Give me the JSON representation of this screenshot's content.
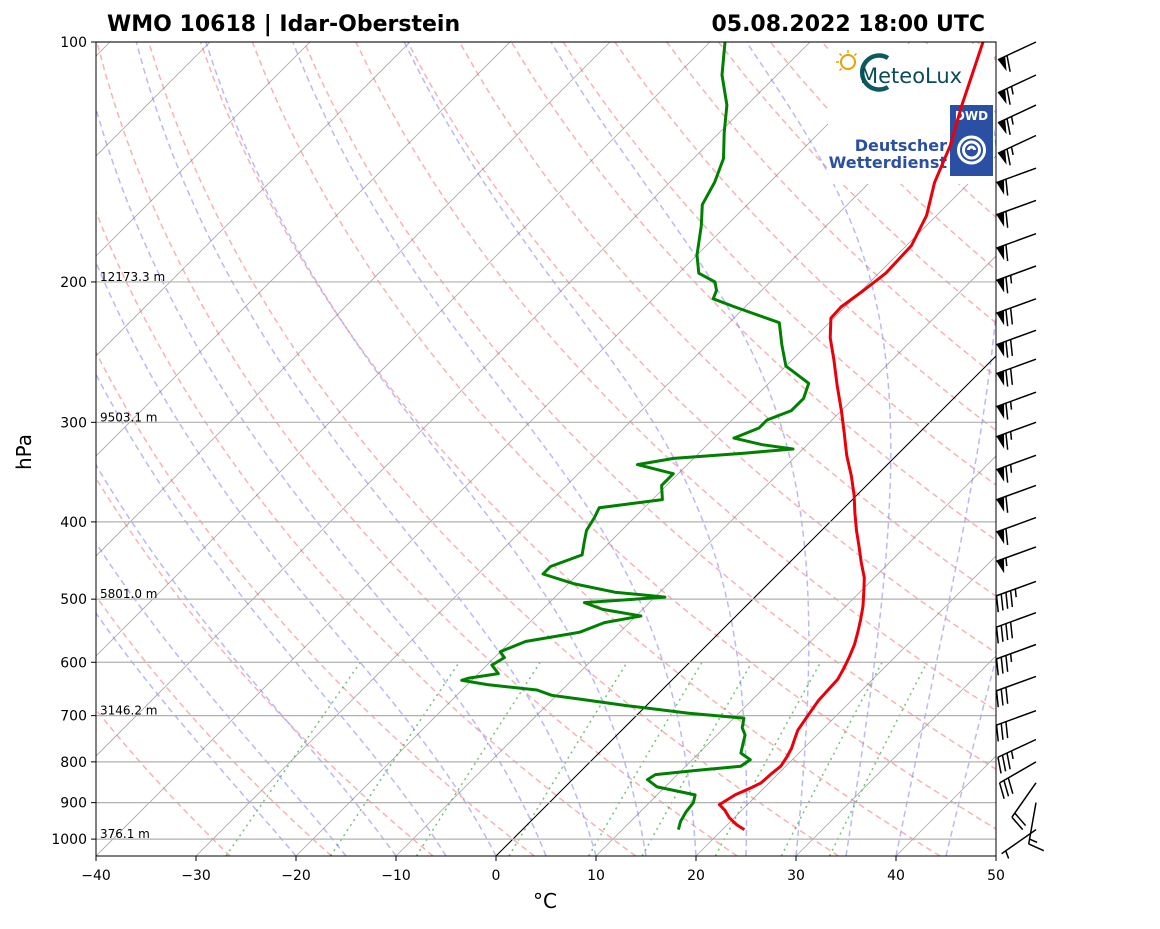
{
  "title_left": "WMO 10618 | Idar-Oberstein",
  "title_right": "05.08.2022 18:00 UTC",
  "logos": {
    "meteolux_text": "MeteoLux",
    "dwd_badge": "DWD",
    "dwd_line1": "Deutscher",
    "dwd_line2": "Wetterdienst"
  },
  "colors": {
    "temperature": "#e8000b",
    "dewpoint": "#008000",
    "isotherm": "#808080",
    "dry_adiabat": "#f08080",
    "moist_adiabat": "#8080f0",
    "mixing_ratio": "#2ca02c"
  },
  "chart_data": {
    "type": "skew-t log-p",
    "xlabel": "°C",
    "ylabel": "hPa",
    "xlim": [
      -40,
      50
    ],
    "ylim": [
      1050,
      100
    ],
    "y_scale": "log",
    "grid": true,
    "x_ticks": [
      -40,
      -30,
      -20,
      -10,
      0,
      10,
      20,
      30,
      40,
      50
    ],
    "x_tick_labels": [
      "−40",
      "−30",
      "−20",
      "−10",
      "0",
      "10",
      "20",
      "30",
      "40",
      "50"
    ],
    "y_ticks": [
      1000,
      900,
      800,
      700,
      600,
      500,
      400,
      300,
      200,
      100
    ],
    "y_tick_labels": [
      "1000",
      "900",
      "800",
      "700",
      "600",
      "500",
      "400",
      "300",
      "200",
      "100"
    ],
    "height_labels": [
      {
        "p": 1000,
        "text": "376.1 m"
      },
      {
        "p": 700,
        "text": "3146.2 m"
      },
      {
        "p": 500,
        "text": "5801.0 m"
      },
      {
        "p": 300,
        "text": "9503.1 m"
      },
      {
        "p": 200,
        "text": "12173.3 m"
      }
    ],
    "series": [
      {
        "key": "temperature",
        "points": [
          [
            973,
            22.2
          ],
          [
            960,
            21
          ],
          [
            940,
            19.5
          ],
          [
            920,
            18.3
          ],
          [
            905,
            17.2
          ],
          [
            880,
            17.8
          ],
          [
            860,
            18.8
          ],
          [
            850,
            19.2
          ],
          [
            830,
            19.3
          ],
          [
            810,
            19.5
          ],
          [
            790,
            19.2
          ],
          [
            770,
            18.8
          ],
          [
            750,
            18.2
          ],
          [
            730,
            17.6
          ],
          [
            710,
            17.3
          ],
          [
            690,
            17.0
          ],
          [
            670,
            16.7
          ],
          [
            650,
            16.6
          ],
          [
            630,
            16.5
          ],
          [
            610,
            16.0
          ],
          [
            590,
            15.4
          ],
          [
            570,
            14.7
          ],
          [
            550,
            13.8
          ],
          [
            530,
            12.8
          ],
          [
            510,
            11.7
          ],
          [
            490,
            10.4
          ],
          [
            470,
            9.0
          ],
          [
            450,
            7.2
          ],
          [
            430,
            5.4
          ],
          [
            410,
            3.5
          ],
          [
            390,
            1.6
          ],
          [
            370,
            -0.3
          ],
          [
            350,
            -2.5
          ],
          [
            330,
            -5.0
          ],
          [
            310,
            -7.4
          ],
          [
            290,
            -10.0
          ],
          [
            270,
            -12.9
          ],
          [
            250,
            -15.9
          ],
          [
            235,
            -18.4
          ],
          [
            222,
            -20.3
          ],
          [
            215,
            -20.4
          ],
          [
            205,
            -19.8
          ],
          [
            195,
            -19.3
          ],
          [
            180,
            -19.5
          ],
          [
            165,
            -21.0
          ],
          [
            150,
            -23.5
          ],
          [
            135,
            -25.6
          ],
          [
            120,
            -28.5
          ],
          [
            110,
            -30.5
          ],
          [
            100,
            -32.7
          ]
        ]
      },
      {
        "key": "dewpoint",
        "points": [
          [
            973,
            15.6
          ],
          [
            950,
            15.0
          ],
          [
            925,
            14.6
          ],
          [
            900,
            14.4
          ],
          [
            880,
            13.8
          ],
          [
            860,
            9.2
          ],
          [
            842,
            7.5
          ],
          [
            830,
            7.8
          ],
          [
            820,
            11.5
          ],
          [
            810,
            15.5
          ],
          [
            795,
            15.8
          ],
          [
            780,
            14.2
          ],
          [
            760,
            13.5
          ],
          [
            740,
            12.8
          ],
          [
            725,
            11.8
          ],
          [
            705,
            11.0
          ],
          [
            695,
            5.0
          ],
          [
            680,
            -2.0
          ],
          [
            667,
            -7.5
          ],
          [
            660,
            -10.5
          ],
          [
            650,
            -12.5
          ],
          [
            640,
            -18.0
          ],
          [
            632,
            -21.0
          ],
          [
            628,
            -20.5
          ],
          [
            620,
            -18.0
          ],
          [
            605,
            -19.5
          ],
          [
            592,
            -19.0
          ],
          [
            582,
            -20.0
          ],
          [
            565,
            -18.5
          ],
          [
            550,
            -14.0
          ],
          [
            535,
            -12.5
          ],
          [
            525,
            -9.5
          ],
          [
            515,
            -14.0
          ],
          [
            505,
            -16.5
          ],
          [
            497,
            -9.0
          ],
          [
            490,
            -14.5
          ],
          [
            478,
            -19.5
          ],
          [
            465,
            -23.5
          ],
          [
            455,
            -23.5
          ],
          [
            440,
            -21.5
          ],
          [
            425,
            -22.5
          ],
          [
            410,
            -23.5
          ],
          [
            395,
            -24.0
          ],
          [
            384,
            -24.5
          ],
          [
            375,
            -19.0
          ],
          [
            360,
            -20.5
          ],
          [
            348,
            -20.5
          ],
          [
            339,
            -25.0
          ],
          [
            333,
            -22.0
          ],
          [
            328,
            -15.5
          ],
          [
            324,
            -11.0
          ],
          [
            320,
            -14.5
          ],
          [
            314,
            -18.0
          ],
          [
            305,
            -16.5
          ],
          [
            298,
            -16.5
          ],
          [
            290,
            -15.0
          ],
          [
            280,
            -15.0
          ],
          [
            268,
            -16.0
          ],
          [
            255,
            -20.0
          ],
          [
            240,
            -22.5
          ],
          [
            225,
            -25.0
          ],
          [
            215,
            -31.0
          ],
          [
            210,
            -34.0
          ],
          [
            205,
            -34.5
          ],
          [
            200,
            -35.5
          ],
          [
            195,
            -38.0
          ],
          [
            185,
            -40.0
          ],
          [
            170,
            -42.5
          ],
          [
            160,
            -44.5
          ],
          [
            150,
            -45.5
          ],
          [
            140,
            -47.0
          ],
          [
            130,
            -49.5
          ],
          [
            120,
            -52.0
          ],
          [
            110,
            -55.5
          ],
          [
            100,
            -58.5
          ]
        ]
      }
    ],
    "wind_barbs": [
      {
        "p": 100,
        "dir": 245,
        "speed_kt": 60
      },
      {
        "p": 110,
        "dir": 245,
        "speed_kt": 65
      },
      {
        "p": 120,
        "dir": 245,
        "speed_kt": 65
      },
      {
        "p": 131,
        "dir": 245,
        "speed_kt": 65
      },
      {
        "p": 144,
        "dir": 250,
        "speed_kt": 60
      },
      {
        "p": 158,
        "dir": 250,
        "speed_kt": 60
      },
      {
        "p": 174,
        "dir": 250,
        "speed_kt": 60
      },
      {
        "p": 191,
        "dir": 250,
        "speed_kt": 65
      },
      {
        "p": 210,
        "dir": 250,
        "speed_kt": 70
      },
      {
        "p": 230,
        "dir": 250,
        "speed_kt": 70
      },
      {
        "p": 250,
        "dir": 250,
        "speed_kt": 70
      },
      {
        "p": 275,
        "dir": 250,
        "speed_kt": 65
      },
      {
        "p": 300,
        "dir": 250,
        "speed_kt": 65
      },
      {
        "p": 330,
        "dir": 250,
        "speed_kt": 65
      },
      {
        "p": 360,
        "dir": 250,
        "speed_kt": 60
      },
      {
        "p": 395,
        "dir": 250,
        "speed_kt": 60
      },
      {
        "p": 430,
        "dir": 250,
        "speed_kt": 55
      },
      {
        "p": 475,
        "dir": 250,
        "speed_kt": 45
      },
      {
        "p": 520,
        "dir": 250,
        "speed_kt": 40
      },
      {
        "p": 570,
        "dir": 250,
        "speed_kt": 35
      },
      {
        "p": 625,
        "dir": 250,
        "speed_kt": 30
      },
      {
        "p": 690,
        "dir": 250,
        "speed_kt": 30
      },
      {
        "p": 750,
        "dir": 245,
        "speed_kt": 35
      },
      {
        "p": 800,
        "dir": 240,
        "speed_kt": 30
      },
      {
        "p": 850,
        "dir": 215,
        "speed_kt": 20
      },
      {
        "p": 900,
        "dir": 190,
        "speed_kt": 15
      },
      {
        "p": 973,
        "dir": 235,
        "speed_kt": 5
      }
    ]
  }
}
